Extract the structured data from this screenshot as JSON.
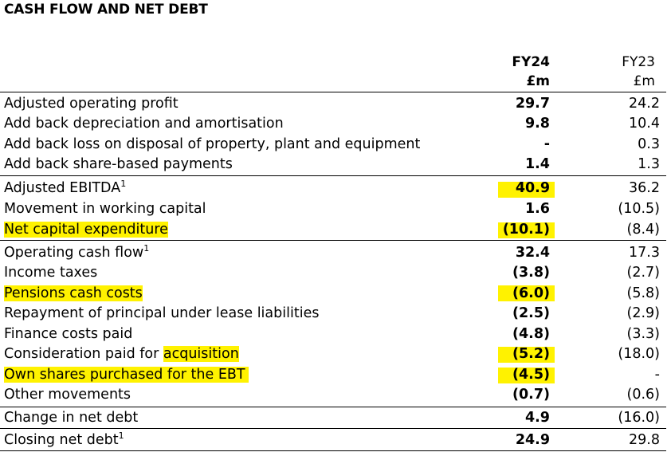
{
  "title": "CASH FLOW AND NET DEBT",
  "columns": {
    "fy24": {
      "label": "FY24",
      "unit": "£m"
    },
    "fy23": {
      "label": "FY23",
      "unit": "£m"
    }
  },
  "rows": [
    {
      "label": "Adjusted operating profit",
      "fy24": "29.7",
      "fy23": "24.2"
    },
    {
      "label": "Add back depreciation and amortisation",
      "fy24": "9.8",
      "fy23": "10.4"
    },
    {
      "label": "Add back loss on disposal of property, plant and equipment",
      "fy24": "-",
      "fy23": "0.3"
    },
    {
      "label": "Add back share-based payments",
      "fy24": "1.4",
      "fy23": "1.3"
    },
    {
      "label": "Adjusted EBITDA",
      "sup": "1",
      "fy24": "40.9",
      "fy23": "36.2"
    },
    {
      "label": "Movement in working capital",
      "fy24": "1.6",
      "fy23": "(10.5)"
    },
    {
      "label": "Net capital expenditure",
      "fy24": "(10.1)",
      "fy23": "(8.4)"
    },
    {
      "label": "Operating cash flow",
      "sup": "1",
      "fy24": "32.4",
      "fy23": "17.3"
    },
    {
      "label": "Income taxes",
      "fy24": "(3.8)",
      "fy23": "(2.7)"
    },
    {
      "label": "Pensions cash costs",
      "fy24": "(6.0)",
      "fy23": "(5.8)"
    },
    {
      "label": "Repayment of principal under lease liabilities",
      "fy24": "(2.5)",
      "fy23": "(2.9)"
    },
    {
      "label": "Finance costs paid",
      "fy24": "(4.8)",
      "fy23": "(3.3)"
    },
    {
      "label_prefix": "Consideration paid for ",
      "label_hl": "acquisition",
      "fy24": "(5.2)",
      "fy23": "(18.0)"
    },
    {
      "label": "Own shares purchased for the EBT",
      "fy24": "(4.5)",
      "fy23": "-"
    },
    {
      "label": "Other movements",
      "fy24": "(0.7)",
      "fy23": "(0.6)"
    },
    {
      "label": "Change in net debt",
      "fy24": "4.9",
      "fy23": "(16.0)"
    },
    {
      "label": "Closing net debt",
      "sup": "1",
      "fy24": "24.9",
      "fy23": "29.8"
    }
  ],
  "highlight_color": "#fff200"
}
